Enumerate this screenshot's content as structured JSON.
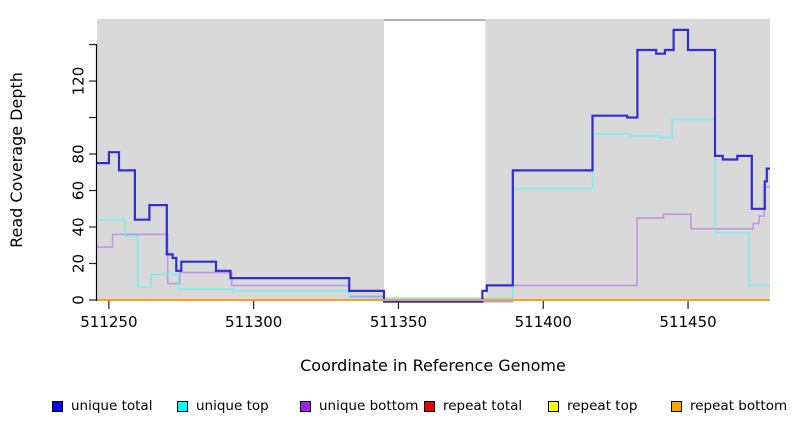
{
  "chart_data": {
    "type": "line",
    "subtype": "step-after-coverage-plot",
    "title": "",
    "xlabel": "Coordinate in Reference Genome",
    "ylabel": "Read Coverage Depth",
    "xlim": [
      511245.9,
      511478.3
    ],
    "ylim": [
      0,
      154
    ],
    "x_ticks": [
      511250,
      511300,
      511350,
      511400,
      511450
    ],
    "x_tick_labels": [
      "511250",
      "511300",
      "511350",
      "511400",
      "511450"
    ],
    "y_ticks": [
      0,
      20,
      40,
      60,
      80,
      100,
      120,
      140
    ],
    "y_tick_labels": [
      "0",
      "20",
      "40",
      "60",
      "80",
      "",
      "120",
      ""
    ],
    "grid": "off",
    "plot_bg_color": "#d9d9d9",
    "masked_region": {
      "x_start": 511345,
      "x_end": 511380,
      "fill": "#ffffff",
      "top_border_color": "#999999"
    },
    "series": [
      {
        "name": "repeat total",
        "line_color": "#ee0000",
        "width": 1.5,
        "points": [
          [
            511245.9,
            0
          ]
        ]
      },
      {
        "name": "repeat top",
        "line_color": "#ffff00",
        "width": 1.5,
        "points": [
          [
            511245.9,
            0
          ]
        ]
      },
      {
        "name": "unique bottom",
        "line_color": "#c098e2",
        "width": 1.6,
        "points": [
          [
            511245.9,
            29
          ],
          [
            511251.3,
            36
          ],
          [
            511270.3,
            9
          ],
          [
            511274.5,
            15
          ],
          [
            511292.4,
            8
          ],
          [
            511333,
            2
          ],
          [
            511345,
            0
          ],
          [
            511389.5,
            8
          ],
          [
            511432.4,
            45
          ],
          [
            511441.5,
            47
          ],
          [
            511451,
            39
          ],
          [
            511472.5,
            42
          ],
          [
            511474.5,
            46
          ],
          [
            511476.3,
            62
          ]
        ]
      },
      {
        "name": "unique top",
        "line_color": "#7deef0",
        "width": 1.6,
        "points": [
          [
            511245.9,
            44
          ],
          [
            511255.5,
            35
          ],
          [
            511260,
            7
          ],
          [
            511264.5,
            14
          ],
          [
            511274,
            6
          ],
          [
            511293,
            5
          ],
          [
            511333,
            1
          ],
          [
            511389.5,
            61
          ],
          [
            511417,
            91
          ],
          [
            511430,
            90
          ],
          [
            511440,
            89
          ],
          [
            511444.5,
            99
          ],
          [
            511459.3,
            37
          ],
          [
            511471,
            8
          ]
        ]
      },
      {
        "name": "unique total",
        "line_color": "#2e2ed2",
        "width": 2.2,
        "points": [
          [
            511245.9,
            75
          ],
          [
            511250,
            81
          ],
          [
            511253.5,
            71
          ],
          [
            511259,
            44
          ],
          [
            511264,
            52
          ],
          [
            511270,
            25
          ],
          [
            511272,
            23
          ],
          [
            511273.3,
            16
          ],
          [
            511275,
            21
          ],
          [
            511287,
            16
          ],
          [
            511292,
            12
          ],
          [
            511333,
            5
          ],
          [
            511345,
            0
          ],
          [
            511379,
            5
          ],
          [
            511380.5,
            8
          ],
          [
            511389.5,
            71
          ],
          [
            511417,
            101
          ],
          [
            511429,
            100
          ],
          [
            511432.5,
            137
          ],
          [
            511439,
            135
          ],
          [
            511442,
            137
          ],
          [
            511445,
            148
          ],
          [
            511450,
            137
          ],
          [
            511459.3,
            79
          ],
          [
            511462,
            77
          ],
          [
            511467,
            79
          ],
          [
            511472,
            50
          ],
          [
            511476.5,
            65
          ],
          [
            511477.2,
            72
          ]
        ]
      },
      {
        "name": "repeat bottom",
        "line_color": "#ff9d26",
        "width": 2,
        "points": [
          [
            511245.9,
            0
          ]
        ]
      }
    ],
    "legend": {
      "position": "bottom",
      "items": [
        {
          "label": "unique total",
          "color": "#0000ee"
        },
        {
          "label": "unique top",
          "color": "#00ffff"
        },
        {
          "label": "unique bottom",
          "color": "#a020f0"
        },
        {
          "label": "repeat total",
          "color": "#ee0000"
        },
        {
          "label": "repeat top",
          "color": "#ffff00"
        },
        {
          "label": "repeat bottom",
          "color": "#ffa500"
        }
      ]
    }
  }
}
